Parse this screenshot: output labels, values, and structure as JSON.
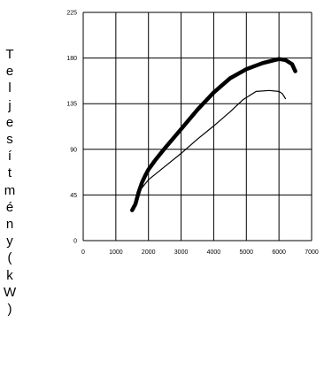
{
  "chart_data": {
    "type": "line",
    "title": "",
    "xlabel": "",
    "ylabel": "Teljesítmény(kW)",
    "xlim": [
      0,
      7000
    ],
    "ylim": [
      0,
      225
    ],
    "x_ticks": [
      0,
      1000,
      2000,
      3000,
      4000,
      5000,
      6000,
      7000
    ],
    "y_ticks": [
      0,
      45,
      90,
      135,
      180,
      225
    ],
    "x_tick_labels": [
      "0",
      "1000",
      "2000",
      "3000",
      "4000",
      "5000",
      "6000",
      "7000"
    ],
    "y_tick_labels": [
      "0",
      "45",
      "90",
      "135",
      "180",
      "225"
    ],
    "grid": true,
    "legend": "none",
    "series": [
      {
        "line_style": "thick",
        "x": [
          1500,
          1600,
          1700,
          1800,
          1900,
          2000,
          2200,
          2500,
          3000,
          3500,
          4000,
          4500,
          5000,
          5500,
          6000,
          6200,
          6400,
          6500
        ],
        "y": [
          30,
          36,
          48,
          57,
          64,
          70,
          79,
          91,
          110,
          129,
          146,
          160,
          169,
          175,
          179,
          178,
          174,
          167
        ]
      },
      {
        "line_style": "thin",
        "x": [
          1800,
          2000,
          2500,
          3000,
          3500,
          4000,
          4500,
          4900,
          5300,
          5700,
          6000,
          6100,
          6200
        ],
        "y": [
          52,
          60,
          73,
          86,
          100,
          113,
          127,
          139,
          147,
          148,
          147,
          145,
          140
        ]
      }
    ]
  }
}
